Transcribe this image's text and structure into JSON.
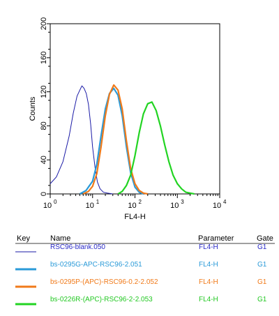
{
  "chart_data": {
    "type": "line",
    "xlabel": "FL4-H",
    "ylabel": "Counts",
    "x_scale": "log",
    "xlim": [
      1,
      10000
    ],
    "ylim": [
      0,
      200
    ],
    "x_ticks": [
      1,
      10,
      100,
      1000,
      10000
    ],
    "x_tick_labels": [
      {
        "base": "10",
        "exp": "0"
      },
      {
        "base": "10",
        "exp": "1"
      },
      {
        "base": "10",
        "exp": "2"
      },
      {
        "base": "10",
        "exp": "3"
      },
      {
        "base": "10",
        "exp": "4"
      }
    ],
    "y_ticks": [
      0,
      40,
      80,
      120,
      160,
      200
    ],
    "y_tick_labels": [
      "0",
      "40",
      "80",
      "120",
      "160",
      "200"
    ],
    "grid": false,
    "series": [
      {
        "name": "RSC96-blank.050",
        "color": "#1a1aa6",
        "x": [
          1,
          1.4,
          2,
          2.8,
          3.5,
          4.3,
          5,
          5.6,
          6.3,
          7.1,
          8,
          9,
          10,
          11.5,
          13,
          15,
          18,
          22,
          30
        ],
        "y": [
          12,
          20,
          38,
          68,
          95,
          115,
          122,
          127,
          124,
          118,
          105,
          82,
          55,
          30,
          14,
          6,
          2,
          1,
          0
        ]
      },
      {
        "name": "bs-0295G-APC-RSC96-2.051",
        "color": "#2a9ad8",
        "x": [
          5,
          7,
          10,
          12.6,
          15.8,
          20,
          25,
          31.6,
          39.8,
          50,
          63,
          79,
          100,
          126,
          158
        ],
        "y": [
          0,
          4,
          15,
          35,
          68,
          100,
          118,
          124,
          116,
          92,
          55,
          25,
          8,
          2,
          0
        ]
      },
      {
        "name": "bs-0295P-(APC)-RSC96-0.2-2.052",
        "color": "#f07a1a",
        "x": [
          6,
          8,
          10,
          12.6,
          15.8,
          20,
          25,
          31.6,
          39.8,
          50,
          63,
          79,
          100,
          126,
          158,
          200
        ],
        "y": [
          0,
          3,
          9,
          24,
          55,
          92,
          117,
          128,
          122,
          100,
          62,
          30,
          12,
          4,
          1,
          0
        ]
      },
      {
        "name": "bs-0226R-(APC)-RSC96-2-2.053",
        "color": "#22d422",
        "x": [
          40,
          50,
          63,
          79,
          100,
          126,
          158,
          200,
          251,
          316,
          398,
          501,
          631,
          794,
          1000,
          1259,
          1585,
          2000,
          2512
        ],
        "y": [
          0,
          3,
          10,
          22,
          45,
          72,
          94,
          106,
          108,
          98,
          80,
          58,
          38,
          22,
          12,
          6,
          2,
          1,
          0
        ]
      }
    ]
  },
  "key_table": {
    "headers": {
      "key": "Key",
      "name": "Name",
      "parameter": "Parameter",
      "gate": "Gate"
    },
    "rows": [
      {
        "name": "RSC96-blank.050",
        "parameter": "FL4-H",
        "gate": "G1",
        "color": "#1a1aa6",
        "text_color": "#2a2ac8"
      },
      {
        "name": "bs-0295G-APC-RSC96-2.051",
        "parameter": "FL4-H",
        "gate": "G1",
        "color": "#2a9ad8",
        "text_color": "#2a9ad8"
      },
      {
        "name": "bs-0295P-(APC)-RSC96-0.2-2.052",
        "parameter": "FL4-H",
        "gate": "G1",
        "color": "#f07a1a",
        "text_color": "#f07a1a"
      },
      {
        "name": "bs-0226R-(APC)-RSC96-2-2.053",
        "parameter": "FL4-H",
        "gate": "G1",
        "color": "#22d422",
        "text_color": "#22c822"
      }
    ]
  }
}
